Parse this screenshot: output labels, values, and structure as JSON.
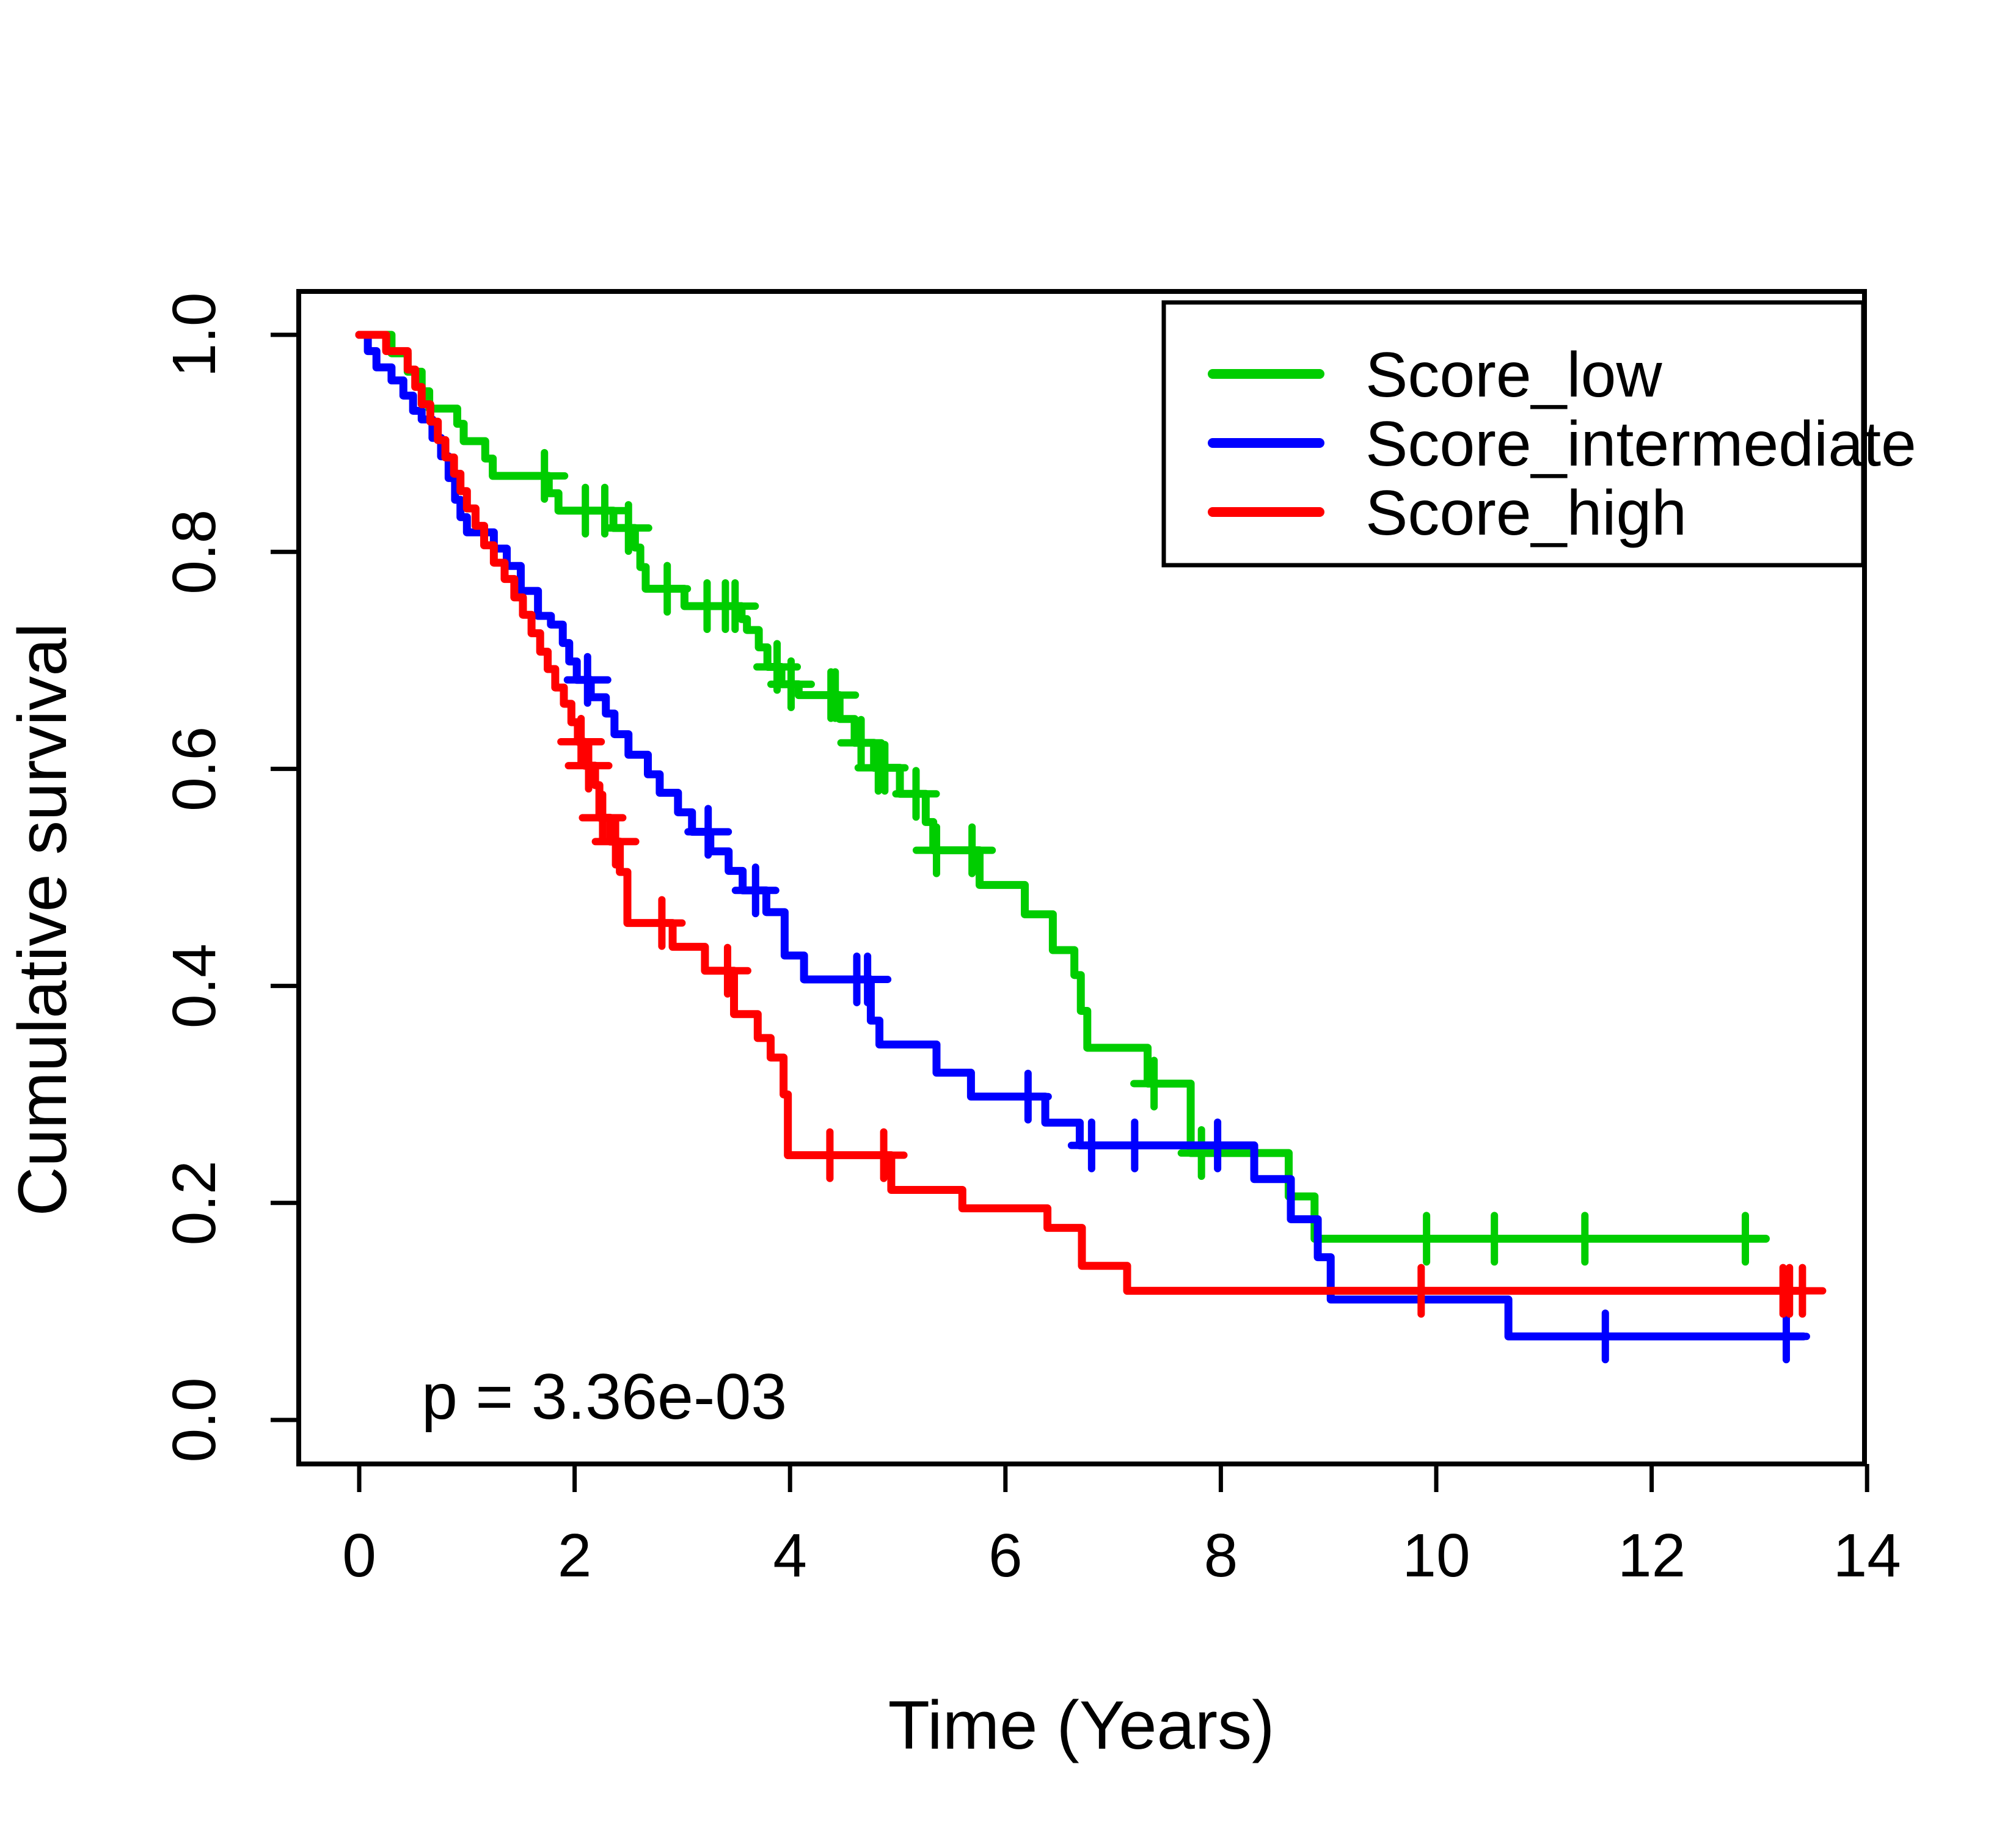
{
  "chart_data": {
    "type": "line",
    "subtype": "kaplan_meier_step",
    "title": "",
    "xlabel": "Time (Years)",
    "ylabel": "Cumulative survival",
    "xlim": [
      0,
      14
    ],
    "ylim": [
      0.0,
      1.0
    ],
    "x_ticks": [
      "0",
      "2",
      "4",
      "6",
      "8",
      "10",
      "12",
      "14"
    ],
    "y_ticks": [
      "0.0",
      "0.2",
      "0.4",
      "0.6",
      "0.8",
      "1.0"
    ],
    "grid": false,
    "legend_position": "top-right",
    "p_value_label": "p = 3.36e-03",
    "frame_color": "#000000",
    "series": [
      {
        "name": "Score_low",
        "color": "#00CD00",
        "start": [
          0,
          1.0
        ],
        "steps": [
          [
            0.3,
            0.983
          ],
          [
            0.45,
            0.966
          ],
          [
            0.58,
            0.948
          ],
          [
            0.65,
            0.932
          ],
          [
            0.91,
            0.918
          ],
          [
            0.97,
            0.902
          ],
          [
            1.17,
            0.886
          ],
          [
            1.24,
            0.87
          ],
          [
            1.76,
            0.854
          ],
          [
            1.85,
            0.838
          ],
          [
            2.36,
            0.822
          ],
          [
            2.56,
            0.804
          ],
          [
            2.61,
            0.786
          ],
          [
            2.66,
            0.766
          ],
          [
            3.02,
            0.75
          ],
          [
            3.55,
            0.738
          ],
          [
            3.6,
            0.728
          ],
          [
            3.71,
            0.712
          ],
          [
            3.79,
            0.694
          ],
          [
            3.92,
            0.678
          ],
          [
            4.08,
            0.668
          ],
          [
            4.46,
            0.646
          ],
          [
            4.6,
            0.624
          ],
          [
            4.78,
            0.601
          ],
          [
            5.02,
            0.577
          ],
          [
            5.26,
            0.551
          ],
          [
            5.33,
            0.525
          ],
          [
            5.76,
            0.493
          ],
          [
            6.18,
            0.466
          ],
          [
            6.44,
            0.433
          ],
          [
            6.64,
            0.41
          ],
          [
            6.7,
            0.377
          ],
          [
            6.76,
            0.343
          ],
          [
            7.32,
            0.31
          ],
          [
            7.72,
            0.246
          ],
          [
            8.63,
            0.206
          ],
          [
            8.87,
            0.167
          ]
        ],
        "censor_times": [
          1.72,
          2.1,
          2.28,
          2.5,
          2.86,
          3.23,
          3.4,
          3.49,
          3.88,
          4.01,
          4.38,
          4.42,
          4.66,
          4.82,
          4.88,
          5.17,
          5.36,
          5.69,
          7.38,
          7.82,
          9.91,
          10.54,
          11.38,
          12.87
        ],
        "end_time": 13.06
      },
      {
        "name": "Score_intermediate",
        "color": "#0000FF",
        "start": [
          0,
          1.0
        ],
        "steps": [
          [
            0.08,
            0.985
          ],
          [
            0.16,
            0.97
          ],
          [
            0.3,
            0.958
          ],
          [
            0.41,
            0.944
          ],
          [
            0.5,
            0.93
          ],
          [
            0.58,
            0.922
          ],
          [
            0.68,
            0.905
          ],
          [
            0.76,
            0.888
          ],
          [
            0.83,
            0.868
          ],
          [
            0.89,
            0.848
          ],
          [
            0.94,
            0.832
          ],
          [
            1.0,
            0.818
          ],
          [
            1.25,
            0.803
          ],
          [
            1.37,
            0.787
          ],
          [
            1.5,
            0.764
          ],
          [
            1.66,
            0.741
          ],
          [
            1.78,
            0.733
          ],
          [
            1.89,
            0.716
          ],
          [
            1.95,
            0.699
          ],
          [
            2.02,
            0.682
          ],
          [
            2.15,
            0.666
          ],
          [
            2.29,
            0.651
          ],
          [
            2.37,
            0.632
          ],
          [
            2.5,
            0.613
          ],
          [
            2.68,
            0.595
          ],
          [
            2.79,
            0.578
          ],
          [
            2.96,
            0.56
          ],
          [
            3.09,
            0.542
          ],
          [
            3.26,
            0.524
          ],
          [
            3.43,
            0.506
          ],
          [
            3.56,
            0.488
          ],
          [
            3.78,
            0.468
          ],
          [
            3.95,
            0.428
          ],
          [
            4.13,
            0.406
          ],
          [
            4.75,
            0.368
          ],
          [
            4.83,
            0.346
          ],
          [
            5.36,
            0.32
          ],
          [
            5.68,
            0.298
          ],
          [
            6.37,
            0.274
          ],
          [
            6.69,
            0.253
          ],
          [
            8.31,
            0.222
          ],
          [
            8.65,
            0.185
          ],
          [
            8.9,
            0.15
          ],
          [
            9.02,
            0.111
          ],
          [
            10.67,
            0.077
          ]
        ],
        "censor_times": [
          2.12,
          3.24,
          3.68,
          4.62,
          4.72,
          6.21,
          6.8,
          7.2,
          7.97,
          11.57,
          13.25
        ],
        "end_time": 13.41
      },
      {
        "name": "Score_high",
        "color": "#FF0000",
        "start": [
          0,
          1.0
        ],
        "steps": [
          [
            0.25,
            0.985
          ],
          [
            0.45,
            0.968
          ],
          [
            0.52,
            0.952
          ],
          [
            0.58,
            0.936
          ],
          [
            0.66,
            0.92
          ],
          [
            0.73,
            0.903
          ],
          [
            0.8,
            0.887
          ],
          [
            0.88,
            0.872
          ],
          [
            0.94,
            0.856
          ],
          [
            1.0,
            0.84
          ],
          [
            1.08,
            0.824
          ],
          [
            1.16,
            0.806
          ],
          [
            1.25,
            0.79
          ],
          [
            1.35,
            0.775
          ],
          [
            1.44,
            0.758
          ],
          [
            1.52,
            0.742
          ],
          [
            1.6,
            0.725
          ],
          [
            1.68,
            0.708
          ],
          [
            1.75,
            0.692
          ],
          [
            1.82,
            0.675
          ],
          [
            1.9,
            0.66
          ],
          [
            1.97,
            0.643
          ],
          [
            2.03,
            0.625
          ],
          [
            2.09,
            0.603
          ],
          [
            2.19,
            0.585
          ],
          [
            2.23,
            0.555
          ],
          [
            2.33,
            0.533
          ],
          [
            2.42,
            0.505
          ],
          [
            2.49,
            0.458
          ],
          [
            2.91,
            0.436
          ],
          [
            3.21,
            0.414
          ],
          [
            3.48,
            0.374
          ],
          [
            3.7,
            0.352
          ],
          [
            3.82,
            0.334
          ],
          [
            3.94,
            0.3
          ],
          [
            3.98,
            0.244
          ],
          [
            4.94,
            0.212
          ],
          [
            5.6,
            0.195
          ],
          [
            6.39,
            0.177
          ],
          [
            6.71,
            0.142
          ],
          [
            7.13,
            0.119
          ]
        ],
        "censor_times": [
          2.06,
          2.13,
          2.26,
          2.38,
          2.81,
          3.42,
          4.37,
          4.87,
          9.86,
          13.22,
          13.28,
          13.4
        ],
        "end_time": 13.42
      }
    ]
  }
}
